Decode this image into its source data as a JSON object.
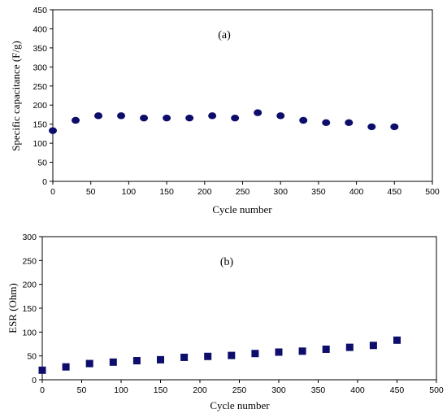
{
  "chart_data": [
    {
      "type": "scatter",
      "panel_label": "(a)",
      "xlabel": "Cycle number",
      "ylabel": "Specific capacitance (F/g)",
      "xlim": [
        0,
        500
      ],
      "ylim": [
        0,
        450
      ],
      "xticks": [
        0,
        50,
        100,
        150,
        200,
        250,
        300,
        350,
        400,
        450,
        500
      ],
      "yticks": [
        0,
        50,
        100,
        150,
        200,
        250,
        300,
        350,
        400,
        450
      ],
      "marker": "circle",
      "color": "#0d0d6b",
      "grid": false,
      "x": [
        0,
        30,
        60,
        90,
        120,
        150,
        180,
        210,
        240,
        270,
        300,
        330,
        360,
        390,
        420,
        450
      ],
      "y": [
        133,
        160,
        172,
        172,
        166,
        166,
        166,
        172,
        166,
        180,
        172,
        160,
        154,
        154,
        143,
        143
      ]
    },
    {
      "type": "scatter",
      "panel_label": "(b)",
      "xlabel": "Cycle number",
      "ylabel": "ESR (Ohm)",
      "xlim": [
        0,
        500
      ],
      "ylim": [
        0,
        300
      ],
      "xticks": [
        0,
        50,
        100,
        150,
        200,
        250,
        300,
        350,
        400,
        450,
        500
      ],
      "yticks": [
        0,
        50,
        100,
        150,
        200,
        250,
        300
      ],
      "marker": "square",
      "color": "#0d0d6b",
      "grid": false,
      "x": [
        0,
        30,
        60,
        90,
        120,
        150,
        180,
        210,
        240,
        270,
        300,
        330,
        360,
        390,
        420,
        450
      ],
      "y": [
        20,
        27,
        34,
        37,
        40,
        42,
        47,
        49,
        51,
        55,
        58,
        60,
        64,
        68,
        72,
        83
      ]
    }
  ]
}
